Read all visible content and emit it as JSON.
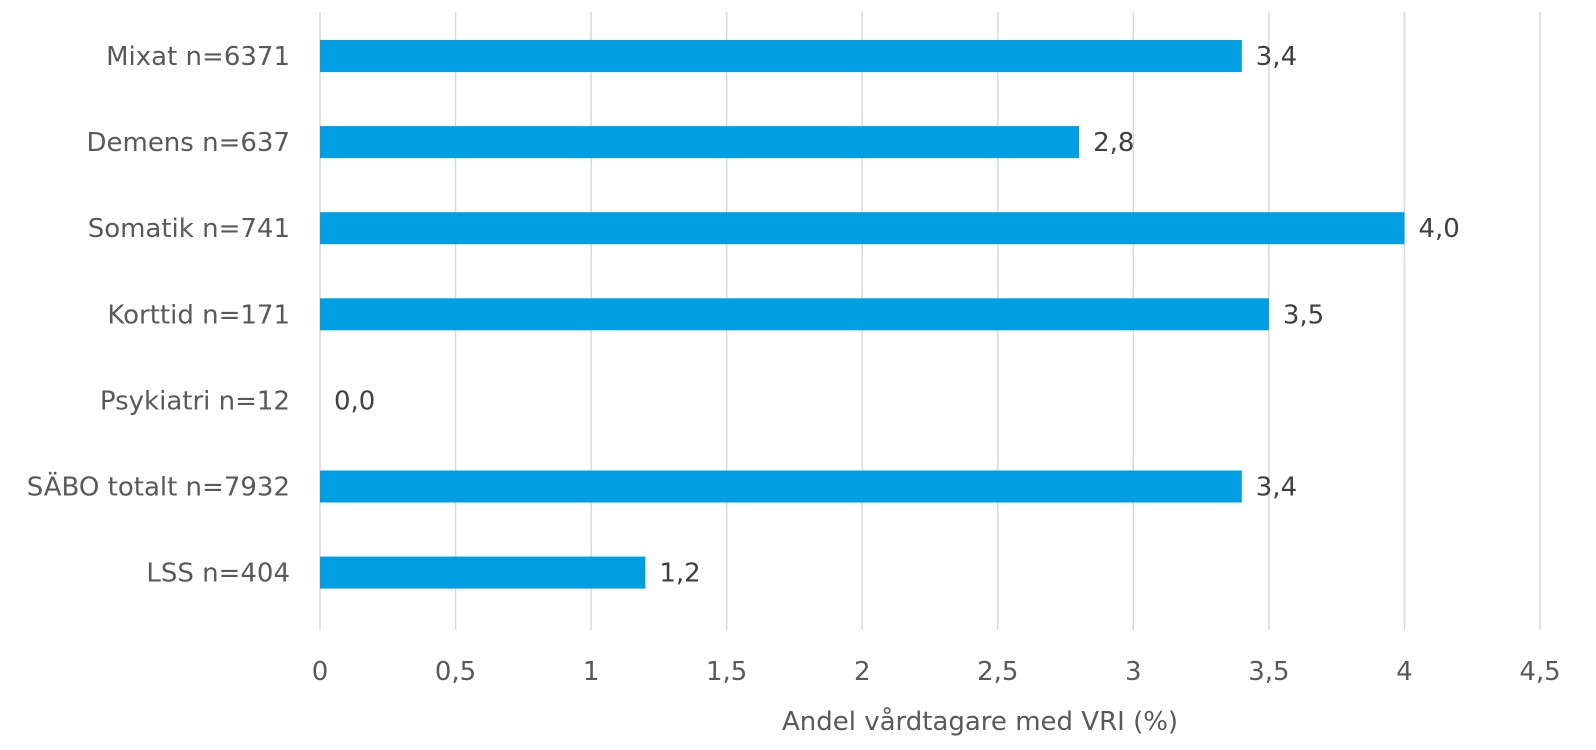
{
  "chart_data": {
    "type": "bar",
    "orientation": "horizontal",
    "categories": [
      "Mixat n=6371",
      "Demens n=637",
      "Somatik n=741",
      "Korttid n=171",
      "Psykiatri n=12",
      "SÄBO totalt n=7932",
      "LSS n=404"
    ],
    "values": [
      3.4,
      2.8,
      4.0,
      3.5,
      0.0,
      3.4,
      1.2
    ],
    "value_labels": [
      "3,4",
      "2,8",
      "4,0",
      "3,5",
      "0,0",
      "3,4",
      "1,2"
    ],
    "xlim": [
      0,
      4.5
    ],
    "xticks": [
      0,
      0.5,
      1,
      1.5,
      2,
      2.5,
      3,
      3.5,
      4,
      4.5
    ],
    "xtick_labels": [
      "0",
      "0,5",
      "1",
      "1,5",
      "2",
      "2,5",
      "3",
      "3,5",
      "4",
      "4,5"
    ],
    "xlabel": "Andel vårdtagare med VRI (%)",
    "ylabel": "",
    "title": "",
    "grid": "vertical",
    "legend": "none",
    "bar_color": "#009fe3"
  }
}
